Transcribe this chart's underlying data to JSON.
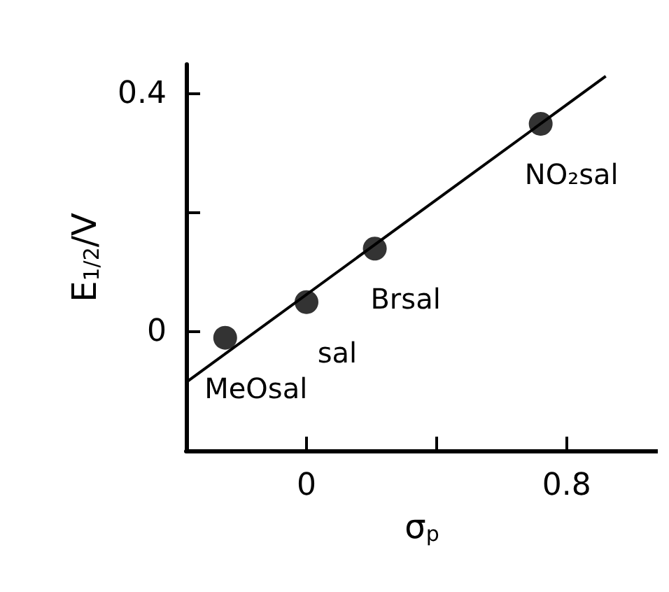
{
  "chart_data": {
    "type": "scatter",
    "xlabel": "σ$_{p}$",
    "ylabel": "E$_{1/2}$/V",
    "series": [
      {
        "color": "#000000",
        "marker": "circle",
        "x": [
          -0.25,
          0,
          0.21,
          0.72
        ],
        "values": [
          -0.01,
          0.05,
          0.14,
          0.35
        ]
      },
      {
        "type": "line",
        "color": "#000000",
        "marker": "none",
        "x": [
          -0.37,
          0.92
        ],
        "values": [
          -0.085,
          0.43
        ]
      }
    ],
    "annotations": [
      {
        "text": "MeOsal",
        "x": -0.25,
        "y": -0.01
      },
      {
        "text": "sal",
        "x": 0,
        "y": 0.05
      },
      {
        "text": "Brsal",
        "x": 0.21,
        "y": 0.14
      },
      {
        "text": "NO₂sal",
        "x": 0.72,
        "y": 0.35
      }
    ],
    "xlim": [
      -0.37,
      1.08
    ],
    "ylim": [
      -0.2,
      0.45
    ],
    "xticks": [
      0,
      {
        "value": 0.4,
        "label": null
      },
      0.8
    ],
    "yticks": [
      {
        "value": -0.2,
        "label": null
      },
      0,
      {
        "value": 0.2,
        "label": null
      },
      0.4
    ],
    "grid": false
  }
}
